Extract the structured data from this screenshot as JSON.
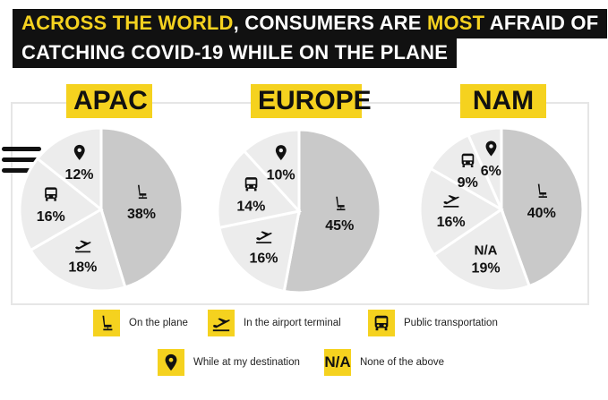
{
  "title": {
    "line1_part1": "ACROSS THE WORLD",
    "line1_part2": ", CONSUMERS ARE ",
    "line1_part3": "MOST",
    "line1_part4": " AFRAID OF",
    "line2": "CATCHING COVID-19 WHILE ON THE PLANE"
  },
  "colors": {
    "accent": "#f5d21f",
    "dark": "#111111",
    "slice_main": "#c9c9c9",
    "slice_other": "#ececec",
    "separator": "#ffffff"
  },
  "legend": {
    "on_plane": "On the plane",
    "airport": "In the airport terminal",
    "transport": "Public transportation",
    "destination": "While at my destination",
    "none": "None of the above",
    "none_symbol": "N/A"
  },
  "chart_data": [
    {
      "type": "pie",
      "title": "APAC",
      "slices": [
        {
          "category": "On the plane",
          "value": 38,
          "label": "38%",
          "icon": "seat-icon"
        },
        {
          "category": "In the airport terminal",
          "value": 18,
          "label": "18%",
          "icon": "plane-icon"
        },
        {
          "category": "Public transportation",
          "value": 16,
          "label": "16%",
          "icon": "bus-icon"
        },
        {
          "category": "While at my destination",
          "value": 12,
          "label": "12%",
          "icon": "pin-icon"
        }
      ]
    },
    {
      "type": "pie",
      "title": "EUROPE",
      "slices": [
        {
          "category": "On the plane",
          "value": 45,
          "label": "45%",
          "icon": "seat-icon"
        },
        {
          "category": "In the airport terminal",
          "value": 16,
          "label": "16%",
          "icon": "plane-icon"
        },
        {
          "category": "Public transportation",
          "value": 14,
          "label": "14%",
          "icon": "bus-icon"
        },
        {
          "category": "While at my destination",
          "value": 10,
          "label": "10%",
          "icon": "pin-icon"
        }
      ]
    },
    {
      "type": "pie",
      "title": "NAM",
      "slices": [
        {
          "category": "On the plane",
          "value": 40,
          "label": "40%",
          "icon": "seat-icon"
        },
        {
          "category": "None of the above",
          "value": 19,
          "label": "19%",
          "icon": "N/A"
        },
        {
          "category": "In the airport terminal",
          "value": 16,
          "label": "16%",
          "icon": "plane-icon"
        },
        {
          "category": "Public transportation",
          "value": 9,
          "label": "9%",
          "icon": "bus-icon"
        },
        {
          "category": "While at my destination",
          "value": 6,
          "label": "6%",
          "icon": "pin-icon"
        }
      ]
    }
  ]
}
